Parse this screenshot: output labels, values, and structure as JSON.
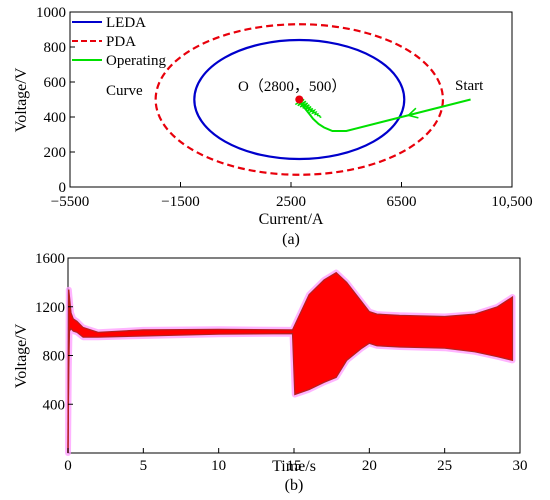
{
  "chart_data": [
    {
      "type": "line",
      "panel_label": "(a)",
      "xlabel": "Current/A",
      "ylabel": "Voltage/V",
      "xlim": [
        -5500,
        10500
      ],
      "ylim": [
        0,
        1000
      ],
      "x_ticks": [
        -5500,
        -1500,
        2500,
        6500,
        10500
      ],
      "x_tick_labels": [
        "−5500",
        "−1500",
        "2500",
        "6500",
        "10,500"
      ],
      "y_ticks": [
        0,
        200,
        400,
        600,
        800,
        1000
      ],
      "y_tick_labels": [
        "0",
        "200",
        "400",
        "600",
        "800",
        "1000"
      ],
      "legend": [
        {
          "label": "LEDA",
          "color": "#0000cc",
          "style": "solid"
        },
        {
          "label": "PDA",
          "color": "#e8000b",
          "style": "dashed"
        },
        {
          "label": "Operating",
          "label2": "Curve",
          "color": "#00e000",
          "style": "solid"
        }
      ],
      "legend_position": "top-left",
      "annotations": {
        "center": "O（2800，500）",
        "start": "Start"
      },
      "series": [
        {
          "name": "LEDA",
          "shape": "ellipse",
          "center": [
            2800,
            500
          ],
          "semi_axes": [
            3800,
            340
          ],
          "color": "#0000cc"
        },
        {
          "name": "PDA",
          "shape": "ellipse",
          "center": [
            2800,
            500
          ],
          "semi_axes": [
            5200,
            430
          ],
          "color": "#e8000b"
        },
        {
          "name": "Operating Curve",
          "color": "#00e000",
          "x": [
            9000,
            7500,
            6000,
            4500,
            4000,
            3700,
            3500,
            3300,
            3150,
            3000,
            2900,
            2850,
            2800
          ],
          "y": [
            500,
            440,
            380,
            320,
            320,
            340,
            360,
            390,
            420,
            450,
            470,
            485,
            500
          ]
        }
      ],
      "marker": {
        "x": 2800,
        "y": 500,
        "color": "#e8000b"
      }
    },
    {
      "type": "line",
      "panel_label": "(b)",
      "xlabel": "Time/s",
      "ylabel": "Voltage/V",
      "xlim": [
        0,
        30
      ],
      "ylim": [
        0,
        1600
      ],
      "x_ticks": [
        0,
        5,
        10,
        15,
        20,
        25,
        30
      ],
      "y_ticks": [
        400,
        800,
        1200,
        1600
      ],
      "series": [
        {
          "name": "voltage",
          "color": "#ff0000",
          "x": [
            0,
            0.05,
            0.1,
            0.2,
            0.35,
            0.6,
            1.0,
            2.0,
            5.0,
            10.0,
            14.9,
            15.05,
            16.0,
            17.0,
            17.8,
            18.5,
            19.5,
            20.0,
            20.5,
            22.0,
            25.0,
            27.0,
            28.5,
            29.5
          ],
          "upper": [
            0,
            1340,
            1280,
            1150,
            1100,
            1080,
            1030,
            990,
            1010,
            1015,
            1010,
            1050,
            1300,
            1420,
            1480,
            1400,
            1240,
            1160,
            1140,
            1130,
            1120,
            1140,
            1200,
            1280
          ],
          "lower": [
            0,
            700,
            1000,
            1020,
            1000,
            990,
            950,
            950,
            960,
            975,
            980,
            480,
            520,
            580,
            620,
            760,
            860,
            900,
            880,
            870,
            860,
            830,
            790,
            760
          ]
        }
      ]
    }
  ]
}
